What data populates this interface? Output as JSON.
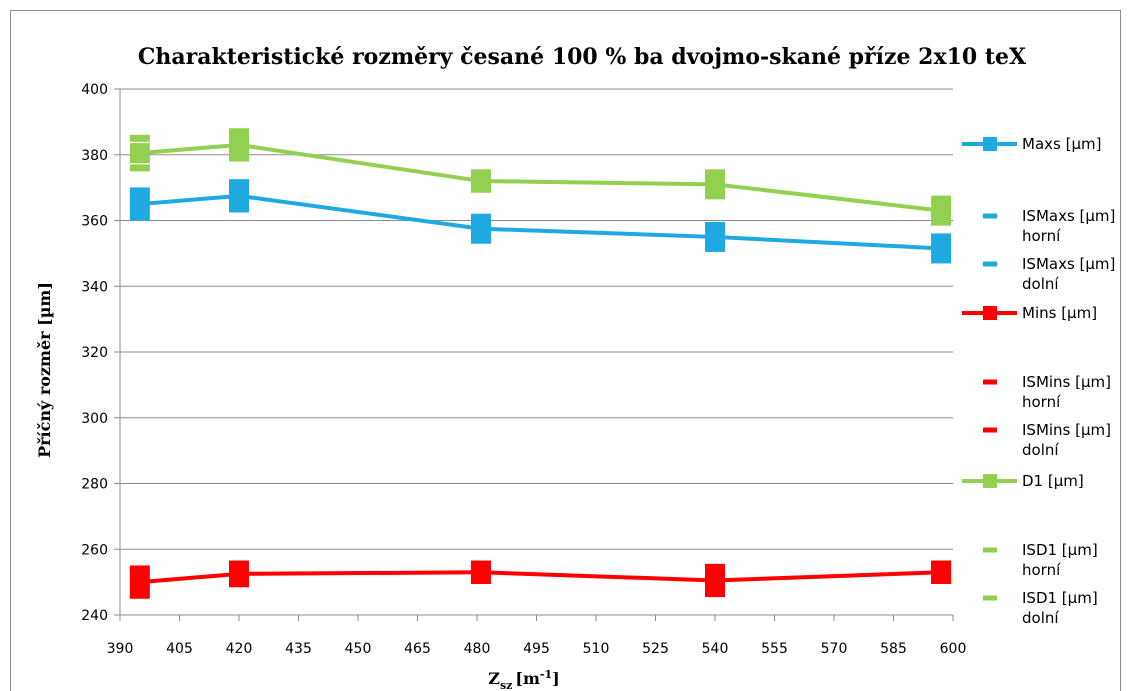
{
  "chart_data": {
    "type": "line",
    "title": "Charakteristické rozměry česané 100 % ba dvojmo-skané příze 2x10 teX",
    "xlabel_main": "Z",
    "xlabel_sub": "sz",
    "xlabel_unit": "[m",
    "xlabel_exp": "-1",
    "xlabel_close": "]",
    "ylabel": "Příčný rozměr [µm]",
    "xlim": [
      390,
      600
    ],
    "ylim": [
      240,
      400
    ],
    "xticks": [
      390,
      405,
      420,
      435,
      450,
      465,
      480,
      495,
      510,
      525,
      540,
      555,
      570,
      585,
      600
    ],
    "yticks": [
      240,
      260,
      280,
      300,
      320,
      340,
      360,
      380,
      400
    ],
    "grid": "horizontal",
    "legend_position": "right",
    "x": [
      395,
      420,
      481,
      540,
      597
    ],
    "series": [
      {
        "name": "Maxs [µm]",
        "role": "line",
        "color": "#1fa9e1",
        "values": [
          365,
          367.5,
          357.5,
          355,
          351.5
        ]
      },
      {
        "name": "ISMaxs [µm] horní",
        "role": "error",
        "color": "#1fa9e1",
        "values": [
          369,
          371.5,
          361,
          358.5,
          355
        ]
      },
      {
        "name": "ISMaxs [µm] dolní",
        "role": "error",
        "color": "#1fa9e1",
        "values": [
          361,
          363.5,
          354,
          351.5,
          348
        ]
      },
      {
        "name": "Mins [µm]",
        "role": "line",
        "color": "#ff0000",
        "values": [
          250,
          252.5,
          253,
          250.5,
          253
        ]
      },
      {
        "name": "ISMins [µm] horní",
        "role": "error",
        "color": "#ff0000",
        "values": [
          254,
          255.5,
          255.5,
          254.5,
          255.5
        ]
      },
      {
        "name": "ISMins [µm] dolní",
        "role": "error",
        "color": "#ff0000",
        "values": [
          246,
          249.5,
          250.5,
          246.5,
          250.5
        ]
      },
      {
        "name": "D1 [µm]",
        "role": "line",
        "color": "#92d050",
        "values": [
          380.5,
          383,
          372,
          371,
          363
        ]
      },
      {
        "name": "ISD1 [µm] horní",
        "role": "error",
        "color": "#92d050",
        "values": [
          385,
          387,
          374.5,
          374.5,
          366.5
        ]
      },
      {
        "name": "ISD1 [µm] dolní",
        "role": "error",
        "color": "#92d050",
        "values": [
          376,
          379,
          369.5,
          367.5,
          359.5
        ]
      }
    ]
  }
}
